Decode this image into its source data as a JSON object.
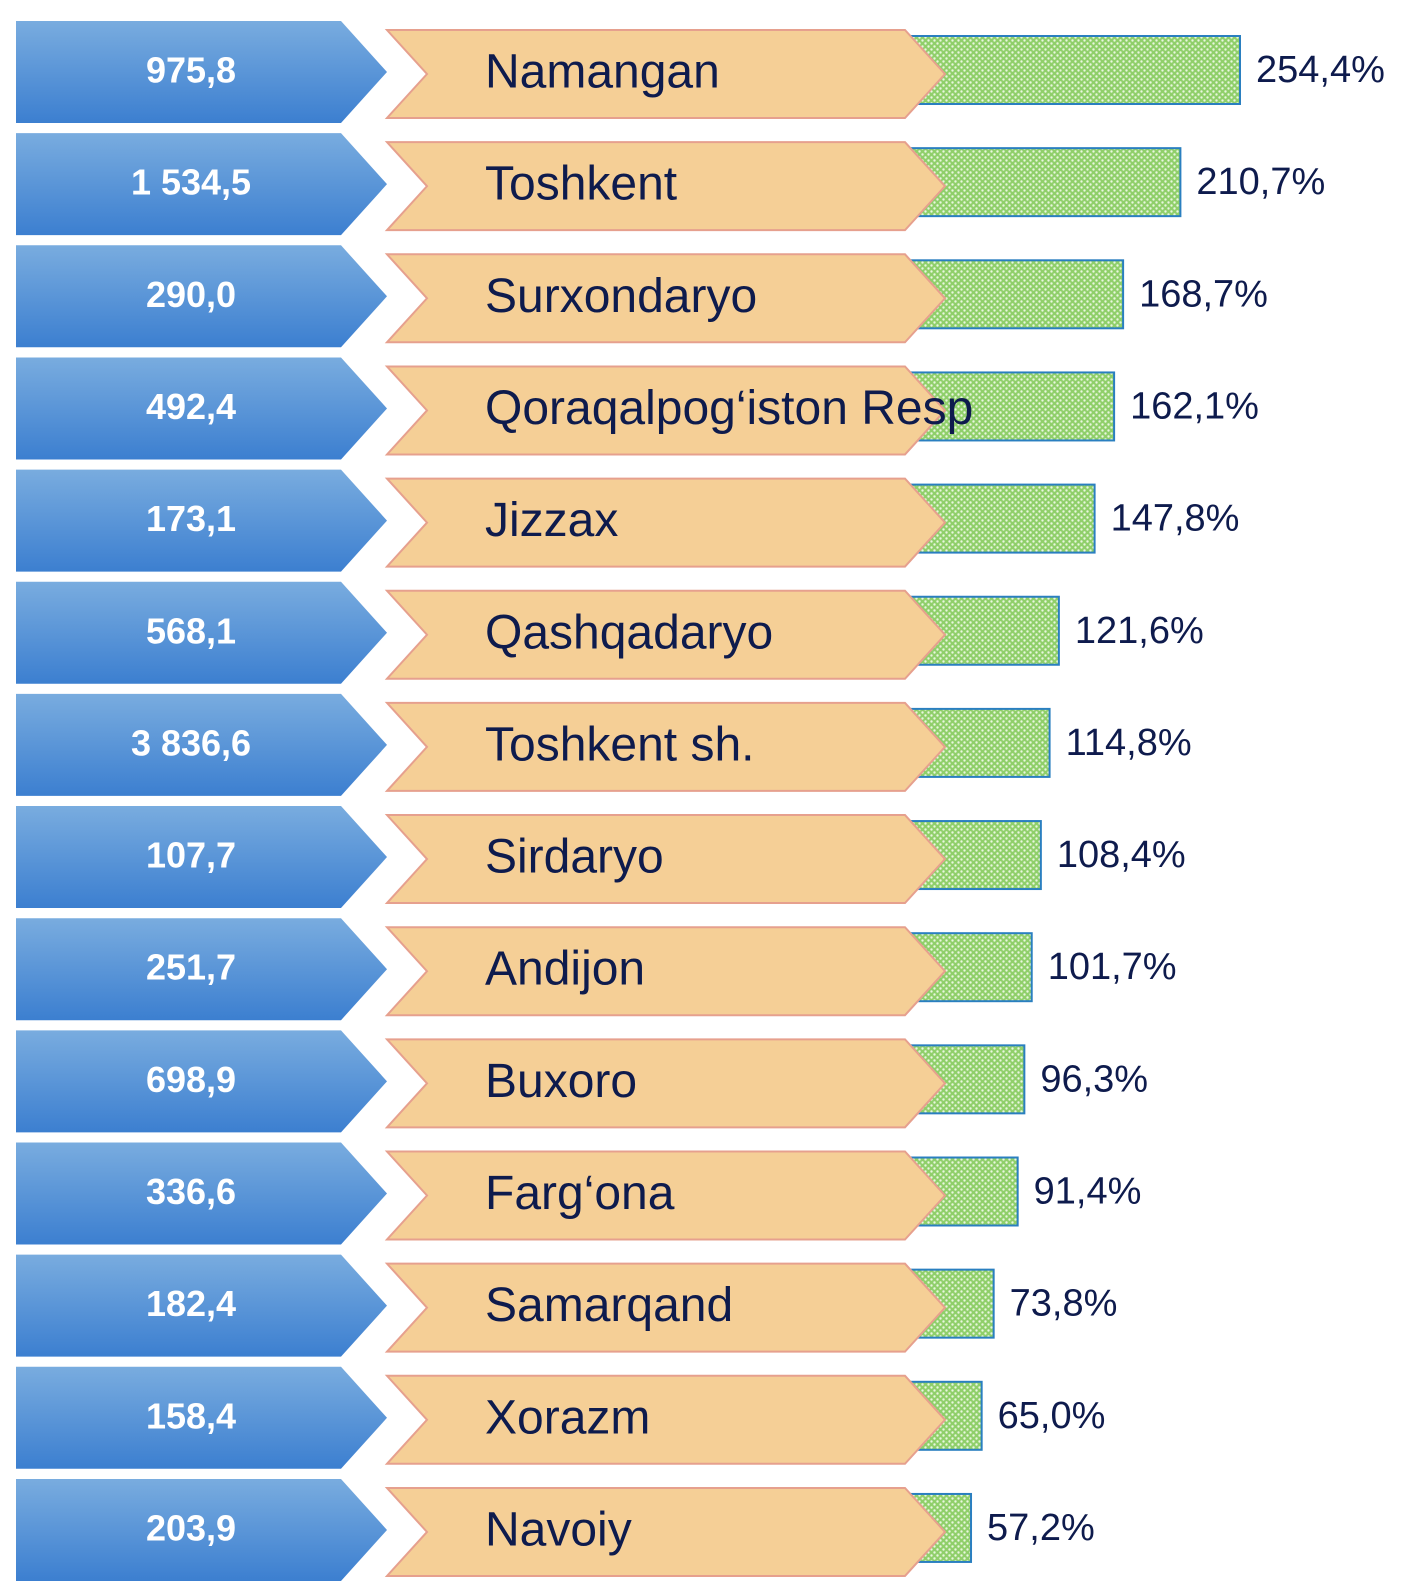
{
  "chart_data": {
    "type": "bar",
    "categories": [
      "Namangan",
      "Toshkent",
      "Surxondaryo",
      "Qoraqalpog‘iston Resp",
      "Jizzax",
      "Qashqadaryo",
      "Toshkent sh.",
      "Sirdaryo",
      "Andijon",
      "Buxoro",
      "Farg‘ona",
      "Samarqand",
      "Xorazm",
      "Navoiy"
    ],
    "series": [
      {
        "color": "#4a8ad6",
        "values": [
          975.8,
          1534.5,
          290.0,
          492.4,
          173.1,
          568.1,
          3836.6,
          107.7,
          251.7,
          698.9,
          336.6,
          182.4,
          158.4,
          203.9
        ],
        "value_labels": [
          "975,8",
          "1 534,5",
          "290,0",
          "492,4",
          "173,1",
          "568,1",
          "3 836,6",
          "107,7",
          "251,7",
          "698,9",
          "336,6",
          "182,4",
          "158,4",
          "203,9"
        ]
      },
      {
        "color": "#8fcf6a",
        "values": [
          254.4,
          210.7,
          168.7,
          162.1,
          147.8,
          121.6,
          114.8,
          108.4,
          101.7,
          96.3,
          91.4,
          73.8,
          65.0,
          57.2
        ],
        "value_labels": [
          "254,4%",
          "210,7%",
          "168,7%",
          "162,1%",
          "147,8%",
          "121,6%",
          "114,8%",
          "108,4%",
          "101,7%",
          "96,3%",
          "91,4%",
          "73,8%",
          "65,0%",
          "57,2%"
        ]
      }
    ]
  }
}
